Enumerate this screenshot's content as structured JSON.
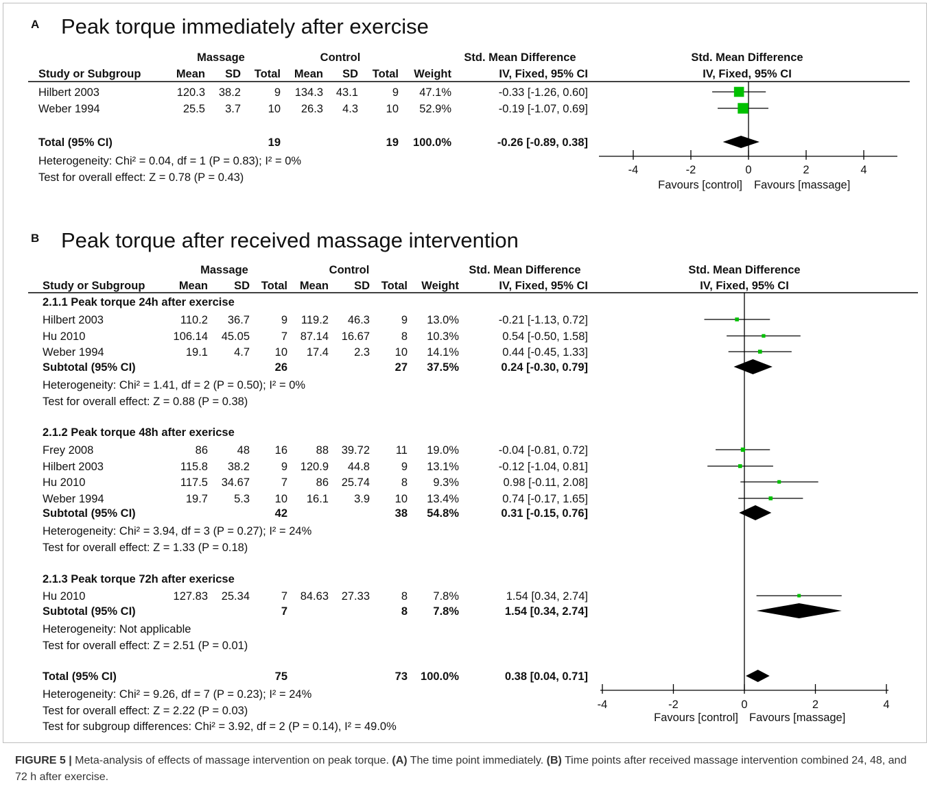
{
  "chart_data": [
    {
      "type": "forest",
      "panel": "A",
      "title": "Peak torque immediately after exercise",
      "headers": {
        "group1": "Massage",
        "group2": "Control",
        "effect": "Std. Mean Difference",
        "method": "IV, Fixed, 95% CI",
        "columns": [
          "Study or Subgroup",
          "Mean",
          "SD",
          "Total",
          "Mean",
          "SD",
          "Total",
          "Weight",
          "IV, Fixed, 95% CI"
        ]
      },
      "rows": [
        {
          "kind": "study",
          "name": "Hilbert 2003",
          "m1": "120.3",
          "sd1": "38.2",
          "n1": "9",
          "m2": "134.3",
          "sd2": "43.1",
          "n2": "9",
          "weight": "47.1%",
          "ci_text": "-0.33 [-1.26, 0.60]",
          "est": -0.33,
          "lo": -1.26,
          "hi": 0.6,
          "w": 47.1
        },
        {
          "kind": "study",
          "name": "Weber  1994",
          "m1": "25.5",
          "sd1": "3.7",
          "n1": "10",
          "m2": "26.3",
          "sd2": "4.3",
          "n2": "10",
          "weight": "52.9%",
          "ci_text": "-0.19 [-1.07, 0.69]",
          "est": -0.19,
          "lo": -1.07,
          "hi": 0.69,
          "w": 52.9
        },
        {
          "kind": "total",
          "name": "Total (95% CI)",
          "n1": "19",
          "n2": "19",
          "weight": "100.0%",
          "ci_text": "-0.26 [-0.89, 0.38]",
          "est": -0.26,
          "lo": -0.89,
          "hi": 0.38
        },
        {
          "kind": "note",
          "name": "Heterogeneity: Chi² = 0.04, df = 1 (P = 0.83); I² = 0%"
        },
        {
          "kind": "note",
          "name": "Test for overall effect: Z = 0.78 (P = 0.43)"
        }
      ],
      "xlim": [
        -4,
        4
      ],
      "ticks": [
        -4,
        -2,
        0,
        2,
        4
      ],
      "favours_left": "Favours [control]",
      "favours_right": "Favours [massage]"
    },
    {
      "type": "forest",
      "panel": "B",
      "title": "Peak torque after received massage intervention",
      "headers": {
        "group1": "Massage",
        "group2": "Control",
        "effect": "Std. Mean Difference",
        "method": "IV, Fixed, 95% CI",
        "columns": [
          "Study or Subgroup",
          "Mean",
          "SD",
          "Total",
          "Mean",
          "SD",
          "Total",
          "Weight",
          "IV, Fixed, 95% CI"
        ]
      },
      "rows": [
        {
          "kind": "group",
          "name": "2.1.1 Peak torque 24h after exercise"
        },
        {
          "kind": "study",
          "name": "Hilbert 2003",
          "m1": "110.2",
          "sd1": "36.7",
          "n1": "9",
          "m2": "119.2",
          "sd2": "46.3",
          "n2": "9",
          "weight": "13.0%",
          "ci_text": "-0.21 [-1.13, 0.72]",
          "est": -0.21,
          "lo": -1.13,
          "hi": 0.72,
          "w": 13.0
        },
        {
          "kind": "study",
          "name": "Hu 2010",
          "m1": "106.14",
          "sd1": "45.05",
          "n1": "7",
          "m2": "87.14",
          "sd2": "16.67",
          "n2": "8",
          "weight": "10.3%",
          "ci_text": "0.54 [-0.50, 1.58]",
          "est": 0.54,
          "lo": -0.5,
          "hi": 1.58,
          "w": 10.3
        },
        {
          "kind": "study",
          "name": "Weber  1994",
          "m1": "19.1",
          "sd1": "4.7",
          "n1": "10",
          "m2": "17.4",
          "sd2": "2.3",
          "n2": "10",
          "weight": "14.1%",
          "ci_text": "0.44 [-0.45, 1.33]",
          "est": 0.44,
          "lo": -0.45,
          "hi": 1.33,
          "w": 14.1
        },
        {
          "kind": "subtotal",
          "name": "Subtotal (95% CI)",
          "n1": "26",
          "n2": "27",
          "weight": "37.5%",
          "ci_text": "0.24 [-0.30, 0.79]",
          "est": 0.24,
          "lo": -0.3,
          "hi": 0.79
        },
        {
          "kind": "note",
          "name": "Heterogeneity: Chi² = 1.41, df = 2 (P = 0.50); I² = 0%"
        },
        {
          "kind": "note",
          "name": "Test for overall effect: Z = 0.88 (P = 0.38)"
        },
        {
          "kind": "blank"
        },
        {
          "kind": "group",
          "name": "2.1.2 Peak torque 48h after exericse"
        },
        {
          "kind": "study",
          "name": "Frey 2008",
          "m1": "86",
          "sd1": "48",
          "n1": "16",
          "m2": "88",
          "sd2": "39.72",
          "n2": "11",
          "weight": "19.0%",
          "ci_text": "-0.04 [-0.81, 0.72]",
          "est": -0.04,
          "lo": -0.81,
          "hi": 0.72,
          "w": 19.0
        },
        {
          "kind": "study",
          "name": "Hilbert 2003",
          "m1": "115.8",
          "sd1": "38.2",
          "n1": "9",
          "m2": "120.9",
          "sd2": "44.8",
          "n2": "9",
          "weight": "13.1%",
          "ci_text": "-0.12 [-1.04, 0.81]",
          "est": -0.12,
          "lo": -1.04,
          "hi": 0.81,
          "w": 13.1
        },
        {
          "kind": "study",
          "name": "Hu 2010",
          "m1": "117.5",
          "sd1": "34.67",
          "n1": "7",
          "m2": "86",
          "sd2": "25.74",
          "n2": "8",
          "weight": "9.3%",
          "ci_text": "0.98 [-0.11, 2.08]",
          "est": 0.98,
          "lo": -0.11,
          "hi": 2.08,
          "w": 9.3
        },
        {
          "kind": "study",
          "name": "Weber  1994",
          "m1": "19.7",
          "sd1": "5.3",
          "n1": "10",
          "m2": "16.1",
          "sd2": "3.9",
          "n2": "10",
          "weight": "13.4%",
          "ci_text": "0.74 [-0.17, 1.65]",
          "est": 0.74,
          "lo": -0.17,
          "hi": 1.65,
          "w": 13.4
        },
        {
          "kind": "subtotal",
          "name": "Subtotal (95% CI)",
          "n1": "42",
          "n2": "38",
          "weight": "54.8%",
          "ci_text": "0.31 [-0.15, 0.76]",
          "est": 0.31,
          "lo": -0.15,
          "hi": 0.76
        },
        {
          "kind": "note",
          "name": "Heterogeneity: Chi² = 3.94, df = 3 (P = 0.27); I² = 24%"
        },
        {
          "kind": "note",
          "name": "Test for overall effect: Z = 1.33 (P = 0.18)"
        },
        {
          "kind": "blank"
        },
        {
          "kind": "group",
          "name": "2.1.3 Peak torque 72h after exericse"
        },
        {
          "kind": "study",
          "name": "Hu 2010",
          "m1": "127.83",
          "sd1": "25.34",
          "n1": "7",
          "m2": "84.63",
          "sd2": "27.33",
          "n2": "8",
          "weight": "7.8%",
          "ci_text": "1.54 [0.34, 2.74]",
          "est": 1.54,
          "lo": 0.34,
          "hi": 2.74,
          "w": 7.8
        },
        {
          "kind": "subtotal",
          "name": "Subtotal (95% CI)",
          "n1": "7",
          "n2": "8",
          "weight": "7.8%",
          "ci_text": "1.54 [0.34, 2.74]",
          "est": 1.54,
          "lo": 0.34,
          "hi": 2.74
        },
        {
          "kind": "note",
          "name": "Heterogeneity: Not applicable"
        },
        {
          "kind": "note",
          "name": "Test for overall effect: Z = 2.51 (P = 0.01)"
        },
        {
          "kind": "blank"
        },
        {
          "kind": "total",
          "name": "Total (95% CI)",
          "n1": "75",
          "n2": "73",
          "weight": "100.0%",
          "ci_text": "0.38 [0.04, 0.71]",
          "est": 0.38,
          "lo": 0.04,
          "hi": 0.71
        },
        {
          "kind": "note",
          "name": "Heterogeneity: Chi² = 9.26, df = 7 (P = 0.23); I² = 24%"
        },
        {
          "kind": "note",
          "name": "Test for overall effect: Z = 2.22 (P = 0.03)"
        },
        {
          "kind": "note",
          "name": "Test for subgroup differences: Chi² = 3.92, df = 2 (P = 0.14), I² = 49.0%"
        }
      ],
      "xlim": [
        -4,
        4
      ],
      "ticks": [
        -4,
        -2,
        0,
        2,
        4
      ],
      "favours_left": "Favours [control]",
      "favours_right": "Favours [massage]"
    }
  ],
  "colors": {
    "square": "#00c000",
    "diamond": "#000000"
  },
  "caption": {
    "label": "FIGURE 5 |",
    "text1": " Meta-analysis of effects of massage intervention on peak torque. ",
    "a": "(A)",
    "text2": " The time point immediately. ",
    "b": "(B)",
    "text3": " Time points after received massage intervention combined 24, 48, and 72 h after exercise."
  }
}
